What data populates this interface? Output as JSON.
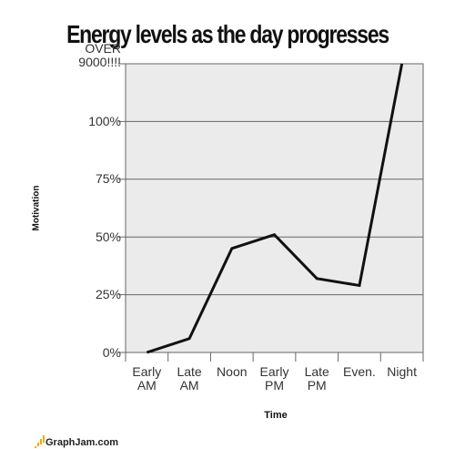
{
  "chart_data": {
    "type": "line",
    "title": "Energy levels as the day progresses",
    "x_label": "Time",
    "y_label": "Motivation",
    "categories": [
      "Early AM",
      "Late AM",
      "Noon",
      "Early PM",
      "Late PM",
      "Even.",
      "Night"
    ],
    "series": [
      {
        "name": "Motivation",
        "color": "#111111",
        "values": [
          0,
          6,
          45,
          51,
          32,
          29,
          125
        ]
      }
    ],
    "ylim": [
      0,
      125
    ],
    "yticks": [
      {
        "value": 0,
        "label": "0%"
      },
      {
        "value": 25,
        "label": "25%"
      },
      {
        "value": 50,
        "label": "50%"
      },
      {
        "value": 75,
        "label": "75%"
      },
      {
        "value": 100,
        "label": "100%"
      },
      {
        "value": 125,
        "label": "OVER 9000!!!!"
      }
    ],
    "grid": true
  },
  "footer": "GraphJam.com"
}
